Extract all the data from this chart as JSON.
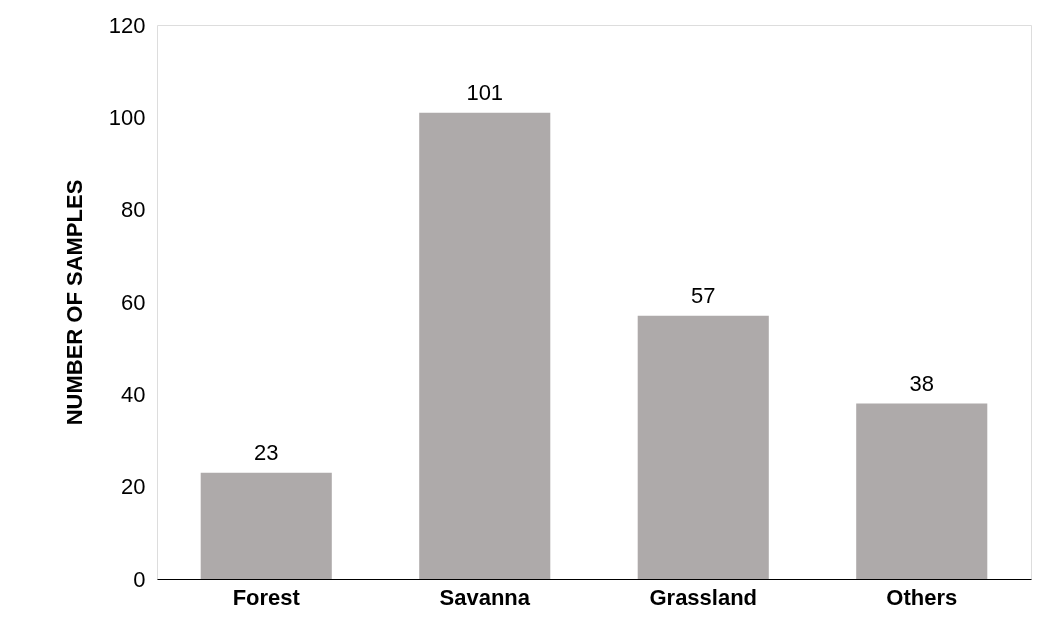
{
  "chart_data": {
    "type": "bar",
    "ylabel": "NUMBER OF SAMPLES",
    "categories": [
      "Forest",
      "Savanna",
      "Grassland",
      "Others"
    ],
    "values": [
      23,
      101,
      57,
      38
    ],
    "color": "#aeaaaa",
    "ylim": [
      0,
      120
    ],
    "yticks": [
      0,
      20,
      40,
      60,
      80,
      100,
      120
    ],
    "grid": false,
    "data_labels": true
  }
}
